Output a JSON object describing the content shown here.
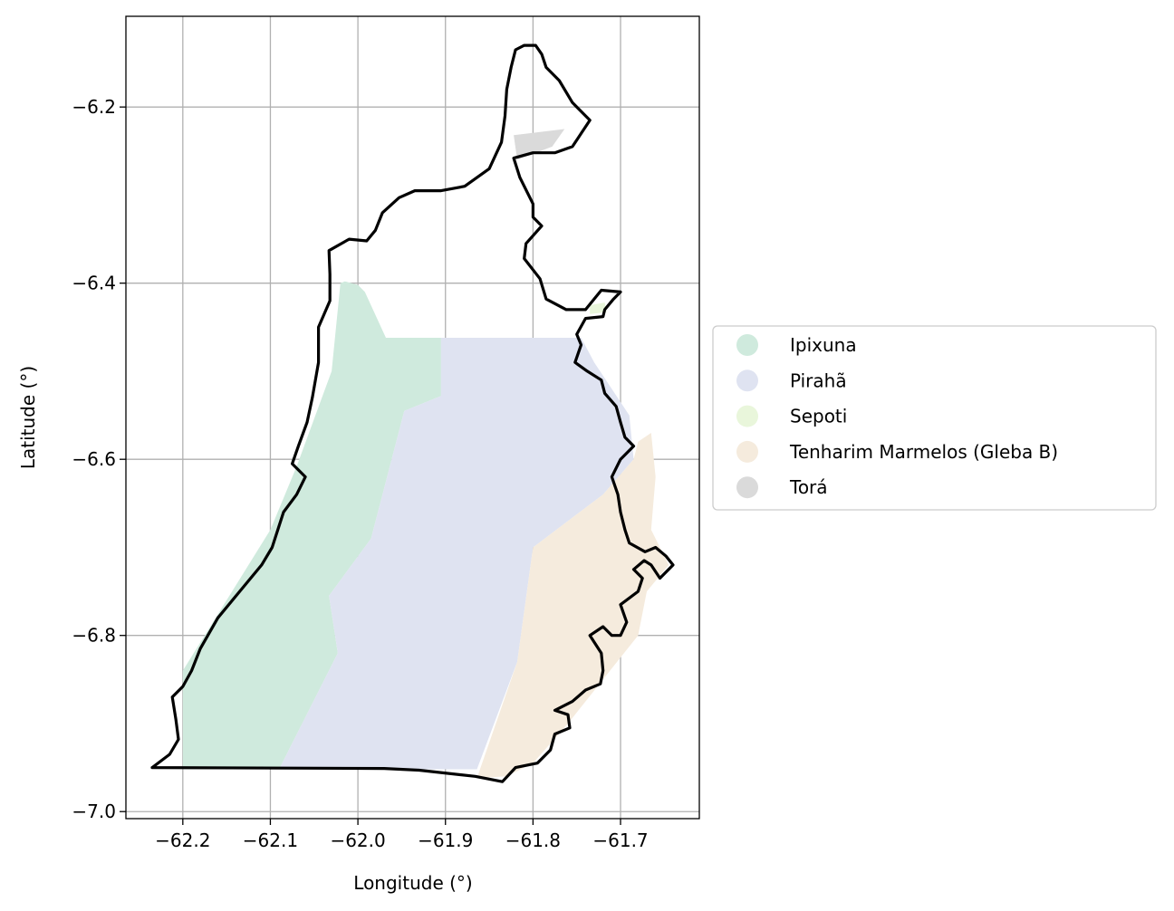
{
  "chart_data": {
    "type": "map",
    "xlabel": "Longitude (°)",
    "ylabel": "Latitude (°)",
    "xlim": [
      -62.265,
      -61.61
    ],
    "ylim": [
      -7.008,
      -6.097
    ],
    "xticks": [
      {
        "value": -62.2,
        "label": "−62.2"
      },
      {
        "value": -62.1,
        "label": "−62.1"
      },
      {
        "value": -62.0,
        "label": "−62.0"
      },
      {
        "value": -61.9,
        "label": "−61.9"
      },
      {
        "value": -61.8,
        "label": "−61.8"
      },
      {
        "value": -61.7,
        "label": "−61.7"
      }
    ],
    "yticks": [
      {
        "value": -6.2,
        "label": "−6.2"
      },
      {
        "value": -6.4,
        "label": "−6.4"
      },
      {
        "value": -6.6,
        "label": "−6.6"
      },
      {
        "value": -6.8,
        "label": "−6.8"
      },
      {
        "value": -7.0,
        "label": "−7.0"
      }
    ],
    "grid": true,
    "legend_position": "right",
    "legend": [
      {
        "name": "Ipixuna",
        "color": "#cfeadd"
      },
      {
        "name": "Pirahã",
        "color": "#dfe3f1"
      },
      {
        "name": "Sepoti",
        "color": "#e9f6db"
      },
      {
        "name": "Tenharim Marmelos (Gleba B)",
        "color": "#f5ebdd"
      },
      {
        "name": "Torá",
        "color": "#dadada"
      }
    ],
    "areas": [
      {
        "name": "Ipixuna",
        "color": "#cfeadd",
        "coords": [
          [
            -62.015,
            -6.398
          ],
          [
            -62.0,
            -6.402
          ],
          [
            -61.992,
            -6.41
          ],
          [
            -61.968,
            -6.462
          ],
          [
            -61.905,
            -6.462
          ],
          [
            -61.905,
            -6.528
          ],
          [
            -61.947,
            -6.545
          ],
          [
            -61.985,
            -6.69
          ],
          [
            -62.033,
            -6.755
          ],
          [
            -62.023,
            -6.82
          ],
          [
            -62.09,
            -6.952
          ],
          [
            -62.2,
            -6.952
          ],
          [
            -62.2,
            -6.84
          ],
          [
            -62.1,
            -6.68
          ],
          [
            -62.07,
            -6.608
          ],
          [
            -62.03,
            -6.5
          ],
          [
            -62.02,
            -6.4
          ]
        ]
      },
      {
        "name": "Pirahã",
        "color": "#dfe3f1",
        "coords": [
          [
            -61.905,
            -6.462
          ],
          [
            -61.745,
            -6.462
          ],
          [
            -61.73,
            -6.49
          ],
          [
            -61.69,
            -6.55
          ],
          [
            -61.685,
            -6.6
          ],
          [
            -61.72,
            -6.64
          ],
          [
            -61.8,
            -6.7
          ],
          [
            -61.818,
            -6.83
          ],
          [
            -61.864,
            -6.952
          ],
          [
            -62.09,
            -6.952
          ],
          [
            -62.023,
            -6.82
          ],
          [
            -62.033,
            -6.755
          ],
          [
            -61.985,
            -6.69
          ],
          [
            -61.947,
            -6.545
          ],
          [
            -61.905,
            -6.528
          ]
        ]
      },
      {
        "name": "Tenharim Marmelos (Gleba B)",
        "color": "#f5ebdd",
        "coords": [
          [
            -61.685,
            -6.6
          ],
          [
            -61.68,
            -6.58
          ],
          [
            -61.665,
            -6.57
          ],
          [
            -61.66,
            -6.62
          ],
          [
            -61.665,
            -6.68
          ],
          [
            -61.645,
            -6.72
          ],
          [
            -61.67,
            -6.75
          ],
          [
            -61.68,
            -6.8
          ],
          [
            -61.72,
            -6.85
          ],
          [
            -61.76,
            -6.9
          ],
          [
            -61.8,
            -6.945
          ],
          [
            -61.83,
            -6.96
          ],
          [
            -61.864,
            -6.962
          ],
          [
            -61.818,
            -6.83
          ],
          [
            -61.8,
            -6.7
          ],
          [
            -61.72,
            -6.64
          ]
        ]
      },
      {
        "name": "Sepoti",
        "color": "#e9f6db",
        "coords": [
          [
            -61.735,
            -6.425
          ],
          [
            -61.718,
            -6.422
          ],
          [
            -61.716,
            -6.433
          ],
          [
            -61.735,
            -6.435
          ]
        ]
      },
      {
        "name": "Torá",
        "color": "#dadada",
        "coords": [
          [
            -61.822,
            -6.232
          ],
          [
            -61.764,
            -6.225
          ],
          [
            -61.778,
            -6.245
          ],
          [
            -61.818,
            -6.26
          ]
        ]
      }
    ],
    "boundary_color": "#000000",
    "boundary": [
      [
        -62.235,
        -6.95
      ],
      [
        -61.97,
        -6.951
      ],
      [
        -61.93,
        -6.953
      ],
      [
        -61.866,
        -6.96
      ],
      [
        -61.835,
        -6.966
      ],
      [
        -61.82,
        -6.95
      ],
      [
        -61.795,
        -6.945
      ],
      [
        -61.78,
        -6.93
      ],
      [
        -61.775,
        -6.912
      ],
      [
        -61.758,
        -6.905
      ],
      [
        -61.76,
        -6.89
      ],
      [
        -61.775,
        -6.885
      ],
      [
        -61.755,
        -6.875
      ],
      [
        -61.74,
        -6.862
      ],
      [
        -61.723,
        -6.855
      ],
      [
        -61.72,
        -6.84
      ],
      [
        -61.722,
        -6.82
      ],
      [
        -61.735,
        -6.8
      ],
      [
        -61.72,
        -6.79
      ],
      [
        -61.71,
        -6.8
      ],
      [
        -61.7,
        -6.8
      ],
      [
        -61.693,
        -6.785
      ],
      [
        -61.7,
        -6.765
      ],
      [
        -61.68,
        -6.75
      ],
      [
        -61.675,
        -6.735
      ],
      [
        -61.685,
        -6.725
      ],
      [
        -61.673,
        -6.715
      ],
      [
        -61.665,
        -6.72
      ],
      [
        -61.655,
        -6.735
      ],
      [
        -61.64,
        -6.72
      ],
      [
        -61.648,
        -6.71
      ],
      [
        -61.66,
        -6.7
      ],
      [
        -61.672,
        -6.705
      ],
      [
        -61.69,
        -6.695
      ],
      [
        -61.695,
        -6.68
      ],
      [
        -61.7,
        -6.66
      ],
      [
        -61.703,
        -6.64
      ],
      [
        -61.71,
        -6.62
      ],
      [
        -61.7,
        -6.6
      ],
      [
        -61.685,
        -6.585
      ],
      [
        -61.695,
        -6.575
      ],
      [
        -61.7,
        -6.558
      ],
      [
        -61.705,
        -6.54
      ],
      [
        -61.718,
        -6.525
      ],
      [
        -61.722,
        -6.51
      ],
      [
        -61.738,
        -6.5
      ],
      [
        -61.752,
        -6.49
      ],
      [
        -61.745,
        -6.47
      ],
      [
        -61.75,
        -6.458
      ],
      [
        -61.74,
        -6.44
      ],
      [
        -61.72,
        -6.438
      ],
      [
        -61.718,
        -6.43
      ],
      [
        -61.708,
        -6.418
      ],
      [
        -61.7,
        -6.41
      ],
      [
        -61.722,
        -6.408
      ],
      [
        -61.74,
        -6.43
      ],
      [
        -61.762,
        -6.43
      ],
      [
        -61.785,
        -6.418
      ],
      [
        -61.792,
        -6.395
      ],
      [
        -61.81,
        -6.372
      ],
      [
        -61.808,
        -6.355
      ],
      [
        -61.79,
        -6.335
      ],
      [
        -61.8,
        -6.325
      ],
      [
        -61.8,
        -6.31
      ],
      [
        -61.815,
        -6.28
      ],
      [
        -61.822,
        -6.258
      ],
      [
        -61.8,
        -6.252
      ],
      [
        -61.775,
        -6.252
      ],
      [
        -61.755,
        -6.245
      ],
      [
        -61.745,
        -6.23
      ],
      [
        -61.735,
        -6.215
      ],
      [
        -61.755,
        -6.195
      ],
      [
        -61.77,
        -6.17
      ],
      [
        -61.785,
        -6.155
      ],
      [
        -61.79,
        -6.14
      ],
      [
        -61.797,
        -6.13
      ],
      [
        -61.81,
        -6.13
      ],
      [
        -61.82,
        -6.135
      ],
      [
        -61.825,
        -6.155
      ],
      [
        -61.83,
        -6.18
      ],
      [
        -61.832,
        -6.21
      ],
      [
        -61.836,
        -6.24
      ],
      [
        -61.85,
        -6.27
      ],
      [
        -61.878,
        -6.29
      ],
      [
        -61.905,
        -6.295
      ],
      [
        -61.935,
        -6.295
      ],
      [
        -61.953,
        -6.303
      ],
      [
        -61.972,
        -6.32
      ],
      [
        -61.98,
        -6.34
      ],
      [
        -61.99,
        -6.352
      ],
      [
        -62.01,
        -6.35
      ],
      [
        -62.033,
        -6.363
      ],
      [
        -62.032,
        -6.39
      ],
      [
        -62.032,
        -6.42
      ],
      [
        -62.045,
        -6.45
      ],
      [
        -62.045,
        -6.49
      ],
      [
        -62.052,
        -6.53
      ],
      [
        -62.058,
        -6.558
      ],
      [
        -62.068,
        -6.585
      ],
      [
        -62.075,
        -6.605
      ],
      [
        -62.06,
        -6.62
      ],
      [
        -62.07,
        -6.64
      ],
      [
        -62.085,
        -6.66
      ],
      [
        -62.098,
        -6.7
      ],
      [
        -62.11,
        -6.72
      ],
      [
        -62.135,
        -6.75
      ],
      [
        -62.16,
        -6.78
      ],
      [
        -62.18,
        -6.815
      ],
      [
        -62.19,
        -6.84
      ],
      [
        -62.2,
        -6.858
      ],
      [
        -62.212,
        -6.87
      ],
      [
        -62.208,
        -6.895
      ],
      [
        -62.205,
        -6.918
      ],
      [
        -62.215,
        -6.935
      ],
      [
        -62.235,
        -6.95
      ]
    ]
  }
}
